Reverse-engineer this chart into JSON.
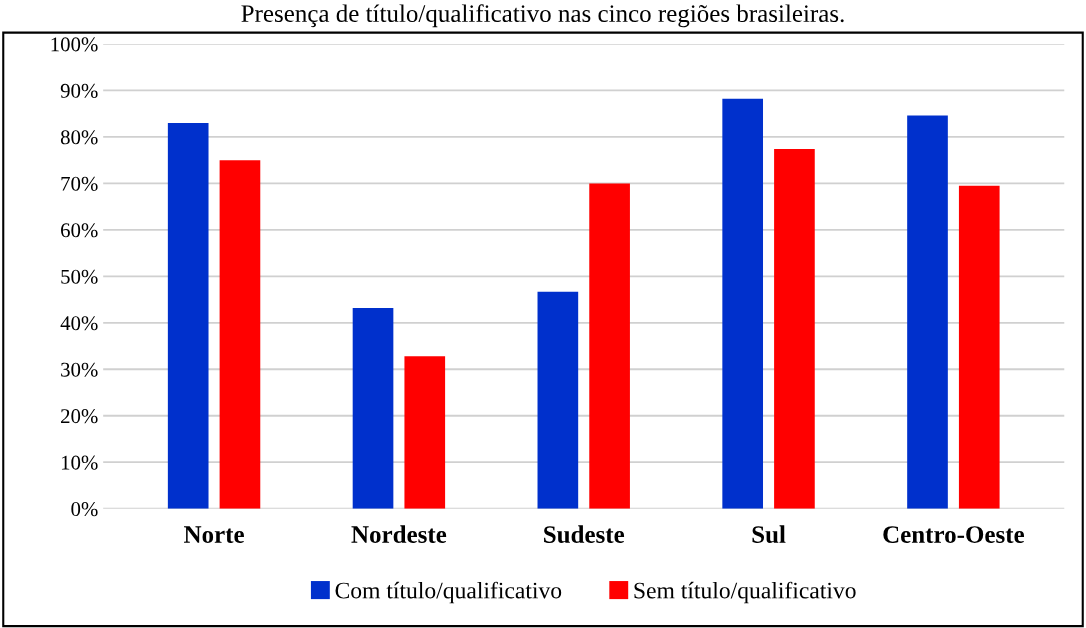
{
  "chart_data": {
    "type": "bar",
    "title": "Presença de título/qualificativo nas cinco regiões brasileiras.",
    "categories": [
      "Norte",
      "Nordeste",
      "Sudeste",
      "Sul",
      "Centro-Oeste"
    ],
    "series": [
      {
        "name": "Com título/qualificativo",
        "color": "#0030cc",
        "values": [
          83,
          43.2,
          46.7,
          88.2,
          84.6
        ]
      },
      {
        "name": "Sem título/qualificativo",
        "color": "#ff0000",
        "values": [
          75,
          32.8,
          70,
          77.4,
          69.5
        ]
      }
    ],
    "ylim": [
      0,
      100
    ],
    "yticks": [
      {
        "value": 0,
        "label": "0%"
      },
      {
        "value": 10,
        "label": "10%"
      },
      {
        "value": 20,
        "label": "20%"
      },
      {
        "value": 30,
        "label": "30%"
      },
      {
        "value": 40,
        "label": "40%"
      },
      {
        "value": 50,
        "label": "50%"
      },
      {
        "value": 60,
        "label": "60%"
      },
      {
        "value": 70,
        "label": "70%"
      },
      {
        "value": 80,
        "label": "80%"
      },
      {
        "value": 90,
        "label": "90%"
      },
      {
        "value": 100,
        "label": "100%"
      }
    ],
    "grid": "y",
    "legend": "bottom"
  }
}
